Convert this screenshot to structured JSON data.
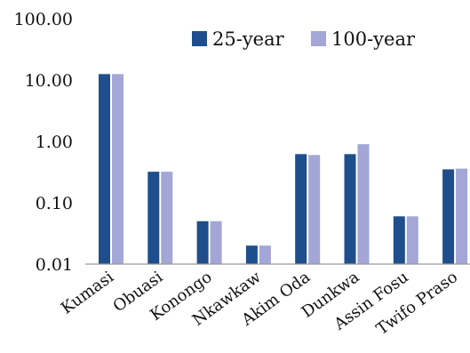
{
  "chart_data": {
    "type": "bar",
    "y_scale": "log",
    "ylim": [
      0.01,
      100
    ],
    "y_ticks": [
      "0.01",
      "0.10",
      "1.00",
      "10.00",
      "100.00"
    ],
    "y_tick_values": [
      0.01,
      0.1,
      1,
      10,
      100
    ],
    "categories": [
      "Kumasi",
      "Obuasi",
      "Konongo",
      "Nkawkaw",
      "Akim Oda",
      "Dunkwa",
      "Assin Fosu",
      "Twifo Praso"
    ],
    "series": [
      {
        "name": "25-year",
        "color": "#1f4e8c",
        "values": [
          12.5,
          0.32,
          0.05,
          0.02,
          0.62,
          0.62,
          0.06,
          0.35
        ]
      },
      {
        "name": "100-year",
        "color": "#a3a6d6",
        "values": [
          12.5,
          0.32,
          0.05,
          0.02,
          0.6,
          0.9,
          0.06,
          0.36
        ]
      }
    ],
    "legend_position": "top-right",
    "grid": false
  }
}
